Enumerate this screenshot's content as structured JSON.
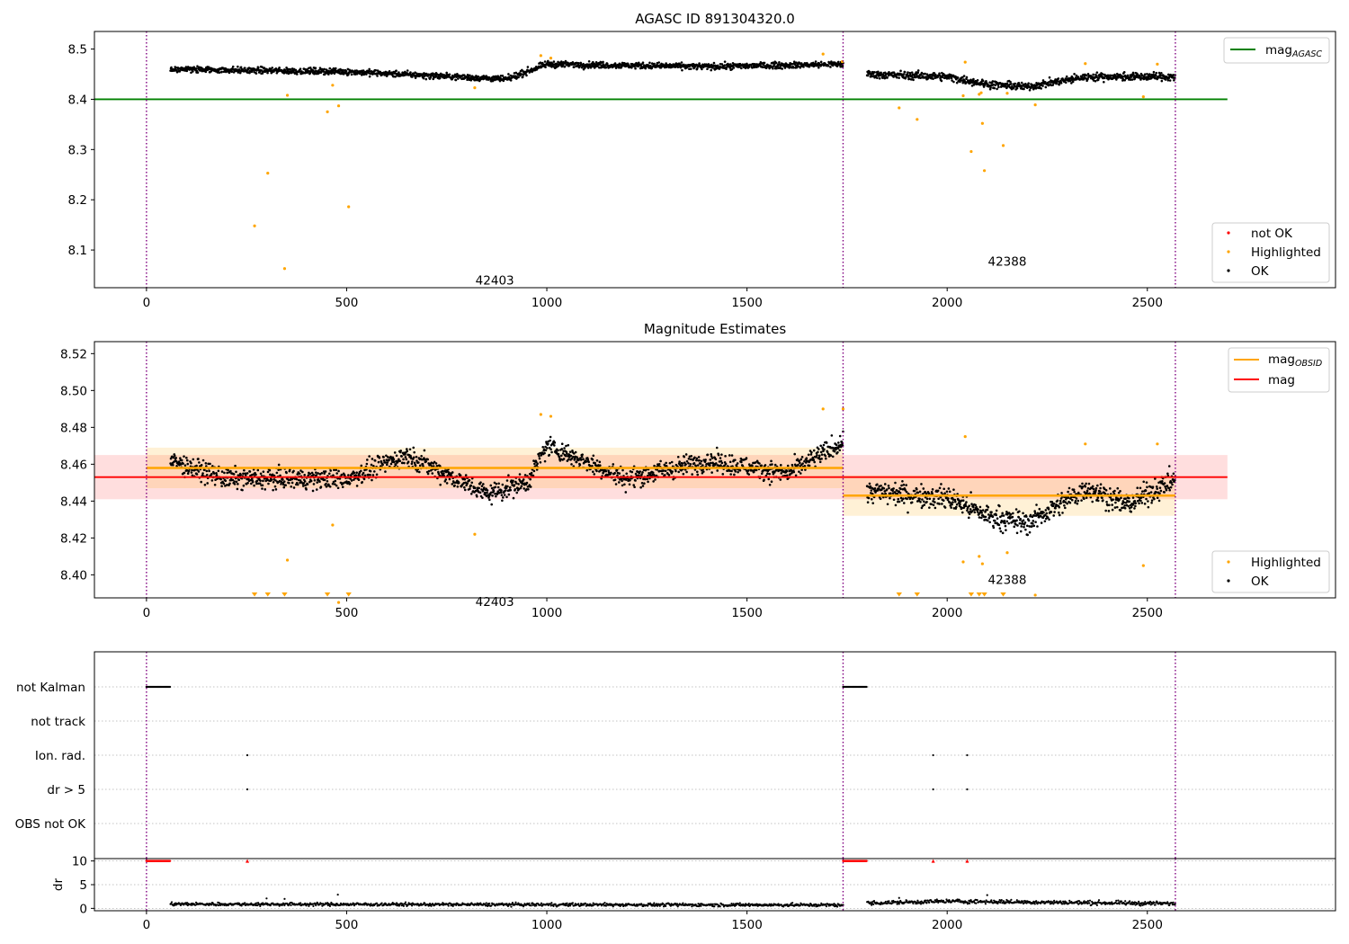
{
  "chart_data": [
    {
      "type": "scatter",
      "title": "AGASC ID 891304320.0",
      "xlabel": "",
      "ylabel": "",
      "xlim": [
        -130,
        2970
      ],
      "ylim": [
        8.025,
        8.535
      ],
      "xticks": [
        0,
        500,
        1000,
        1500,
        2000,
        2500
      ],
      "yticks": [
        8.1,
        8.2,
        8.3,
        8.4,
        8.5
      ],
      "ytick_format": 1,
      "obsid_boundaries": [
        0,
        1740,
        2570
      ],
      "obsid_labels": [
        {
          "text": "42403",
          "x": 870,
          "y": 8.04
        },
        {
          "text": "42388",
          "x": 2150,
          "y": 8.078
        }
      ],
      "reference_lines": [
        {
          "name": "mag_AGASC",
          "value": 8.4,
          "x_range": [
            -130,
            2700
          ],
          "color": "#008000"
        }
      ],
      "series": [
        {
          "name": "OK",
          "color": "#000000",
          "description": "dense scatter of OK samples",
          "segments": [
            {
              "x_range": [
                60,
                1740
              ],
              "trend": [
                [
                  60,
                  8.46
                ],
                [
                  500,
                  8.455
                ],
                [
                  900,
                  8.44
                ],
                [
                  1000,
                  8.47
                ],
                [
                  1400,
                  8.465
                ],
                [
                  1740,
                  8.47
                ]
              ],
              "noise": 0.008
            },
            {
              "x_range": [
                1800,
                2570
              ],
              "trend": [
                [
                  1800,
                  8.45
                ],
                [
                  2000,
                  8.445
                ],
                [
                  2100,
                  8.43
                ],
                [
                  2200,
                  8.425
                ],
                [
                  2350,
                  8.445
                ],
                [
                  2570,
                  8.445
                ]
              ],
              "noise": 0.01
            }
          ]
        },
        {
          "name": "Highlighted",
          "color": "#ffa500",
          "points": [
            [
              270,
              8.148
            ],
            [
              303,
              8.253
            ],
            [
              345,
              8.063
            ],
            [
              352,
              8.408
            ],
            [
              452,
              8.375
            ],
            [
              465,
              8.428
            ],
            [
              480,
              8.387
            ],
            [
              505,
              8.186
            ],
            [
              820,
              8.423
            ],
            [
              985,
              8.487
            ],
            [
              1010,
              8.482
            ],
            [
              1690,
              8.49
            ],
            [
              1738,
              8.475
            ],
            [
              1880,
              8.383
            ],
            [
              1925,
              8.36
            ],
            [
              2040,
              8.407
            ],
            [
              2045,
              8.474
            ],
            [
              2060,
              8.296
            ],
            [
              2080,
              8.41
            ],
            [
              2085,
              8.413
            ],
            [
              2088,
              8.352
            ],
            [
              2093,
              8.258
            ],
            [
              2140,
              8.308
            ],
            [
              2150,
              8.412
            ],
            [
              2220,
              8.389
            ],
            [
              2345,
              8.471
            ],
            [
              2490,
              8.405
            ],
            [
              2525,
              8.47
            ]
          ]
        },
        {
          "name": "not OK",
          "color": "#ff0000",
          "points": []
        }
      ],
      "legends": [
        {
          "position": "top-right",
          "entries": [
            {
              "label": "mag",
              "subscript": "AGASC",
              "color": "#008000",
              "kind": "line"
            }
          ]
        },
        {
          "position": "lower-right",
          "entries": [
            {
              "label": "not OK",
              "color": "#ff0000",
              "kind": "marker"
            },
            {
              "label": "Highlighted",
              "color": "#ffa500",
              "kind": "marker"
            },
            {
              "label": "OK",
              "color": "#000000",
              "kind": "marker"
            }
          ]
        }
      ]
    },
    {
      "type": "scatter",
      "title": "Magnitude Estimates",
      "xlabel": "",
      "ylabel": "",
      "xlim": [
        -130,
        2970
      ],
      "ylim": [
        8.3875,
        8.5265
      ],
      "xticks": [
        0,
        500,
        1000,
        1500,
        2000,
        2500
      ],
      "yticks": [
        8.4,
        8.42,
        8.44,
        8.46,
        8.48,
        8.5,
        8.52
      ],
      "ytick_format": 2,
      "obsid_boundaries": [
        0,
        1740,
        2570
      ],
      "obsid_labels": [
        {
          "text": "42403",
          "x": 870,
          "y": 8.3855
        },
        {
          "text": "42388",
          "x": 2150,
          "y": 8.3975
        }
      ],
      "reference_lines": [
        {
          "name": "mag",
          "value": 8.453,
          "x_range": [
            -130,
            2700
          ],
          "color": "#ff0000",
          "band": [
            8.441,
            8.465
          ],
          "band_color": "#ff0000",
          "band_opacity": 0.13
        }
      ],
      "segment_lines": [
        {
          "name": "mag_OBSID",
          "value": 8.458,
          "x_range": [
            0,
            1740
          ],
          "color": "#ffa500",
          "band": [
            8.447,
            8.469
          ],
          "band_opacity": 0.16
        },
        {
          "name": "mag_OBSID",
          "value": 8.443,
          "x_range": [
            1740,
            2570
          ],
          "color": "#ffa500",
          "band": [
            8.432,
            8.454
          ],
          "band_opacity": 0.16
        }
      ],
      "series": [
        {
          "name": "OK",
          "color": "#000000",
          "description": "dense scatter of OK samples",
          "segments": [
            {
              "x_range": [
                60,
                1740
              ],
              "trend": [
                [
                  60,
                  8.462
                ],
                [
                  200,
                  8.452
                ],
                [
                  500,
                  8.452
                ],
                [
                  650,
                  8.465
                ],
                [
                  850,
                  8.444
                ],
                [
                  950,
                  8.45
                ],
                [
                  1000,
                  8.47
                ],
                [
                  1200,
                  8.452
                ],
                [
                  1400,
                  8.462
                ],
                [
                  1600,
                  8.455
                ],
                [
                  1740,
                  8.472
                ]
              ],
              "noise": 0.007
            },
            {
              "x_range": [
                1800,
                2570
              ],
              "trend": [
                [
                  1800,
                  8.445
                ],
                [
                  2000,
                  8.442
                ],
                [
                  2100,
                  8.432
                ],
                [
                  2200,
                  8.428
                ],
                [
                  2350,
                  8.447
                ],
                [
                  2450,
                  8.438
                ],
                [
                  2570,
                  8.452
                ]
              ],
              "noise": 0.008
            }
          ]
        },
        {
          "name": "Highlighted",
          "color": "#ffa500",
          "points": [
            [
              352,
              8.408
            ],
            [
              465,
              8.427
            ],
            [
              480,
              8.385
            ],
            [
              820,
              8.422
            ],
            [
              985,
              8.487
            ],
            [
              1010,
              8.486
            ],
            [
              1690,
              8.49
            ],
            [
              1740,
              8.49
            ],
            [
              2040,
              8.407
            ],
            [
              2045,
              8.475
            ],
            [
              2080,
              8.41
            ],
            [
              2088,
              8.406
            ],
            [
              2150,
              8.412
            ],
            [
              2220,
              8.389
            ],
            [
              2345,
              8.471
            ],
            [
              2490,
              8.405
            ],
            [
              2525,
              8.471
            ]
          ]
        },
        {
          "name": "Highlighted (below axis)",
          "color": "#ffa500",
          "marker": "triangle-down",
          "x": [
            270,
            303,
            345,
            452,
            505,
            1880,
            1925,
            2060,
            2080,
            2093,
            2140
          ]
        }
      ],
      "legends": [
        {
          "position": "top-right",
          "entries": [
            {
              "label": "mag",
              "subscript": "OBSID",
              "color": "#ffa500",
              "kind": "line"
            },
            {
              "label": "mag",
              "color": "#ff0000",
              "kind": "line"
            }
          ]
        },
        {
          "position": "lower-right",
          "entries": [
            {
              "label": "Highlighted",
              "color": "#ffa500",
              "kind": "marker"
            },
            {
              "label": "OK",
              "color": "#000000",
              "kind": "marker"
            }
          ]
        }
      ]
    },
    {
      "type": "scatter",
      "title": "",
      "xlabel": "",
      "ylabel": "",
      "xlim": [
        -130,
        2970
      ],
      "categories": [
        "not Kalman",
        "not track",
        "Ion. rad.",
        "dr > 5",
        "OBS not OK"
      ],
      "obsid_boundaries": [
        0,
        1740,
        2570
      ],
      "flags": [
        {
          "category": "not Kalman",
          "x_ranges": [
            [
              0,
              60
            ],
            [
              1740,
              1800
            ]
          ]
        },
        {
          "category": "not track",
          "x_points": []
        },
        {
          "category": "Ion. rad.",
          "x_points": [
            252,
            1965,
            2050
          ]
        },
        {
          "category": "dr > 5",
          "x_points": [
            252,
            1965,
            2050
          ]
        },
        {
          "category": "OBS not OK",
          "x_points": []
        }
      ]
    },
    {
      "type": "scatter",
      "title": "",
      "xlabel": "",
      "ylabel": "dr",
      "xlim": [
        -130,
        2970
      ],
      "ylim": [
        -0.5,
        10.5
      ],
      "yticks": [
        0,
        5,
        10
      ],
      "xticks": [
        0,
        500,
        1000,
        1500,
        2000,
        2500
      ],
      "obsid_boundaries": [
        0,
        1740,
        2570
      ],
      "series": [
        {
          "name": "dr",
          "color": "#000000",
          "description": "residuals near 0-2 with a few spikes",
          "segments": [
            {
              "x_range": [
                60,
                1740
              ],
              "trend": [
                [
                  60,
                  0.9
                ],
                [
                  1740,
                  0.7
                ]
              ],
              "noise": 0.4
            },
            {
              "x_range": [
                1800,
                2570
              ],
              "trend": [
                [
                  1800,
                  1.1
                ],
                [
                  2000,
                  1.5
                ],
                [
                  2570,
                  1.0
                ]
              ],
              "noise": 0.5
            }
          ],
          "spikes": [
            [
              300,
              2.1
            ],
            [
              345,
              2.0
            ],
            [
              478,
              2.9
            ],
            [
              1880,
              2.2
            ],
            [
              2100,
              2.8
            ]
          ]
        },
        {
          "name": "dr clipped",
          "color": "#ff0000",
          "value": 10,
          "x_ranges": [
            [
              0,
              60
            ],
            [
              1740,
              1800
            ]
          ],
          "x_points": [
            252,
            1965,
            2050
          ]
        }
      ]
    }
  ]
}
